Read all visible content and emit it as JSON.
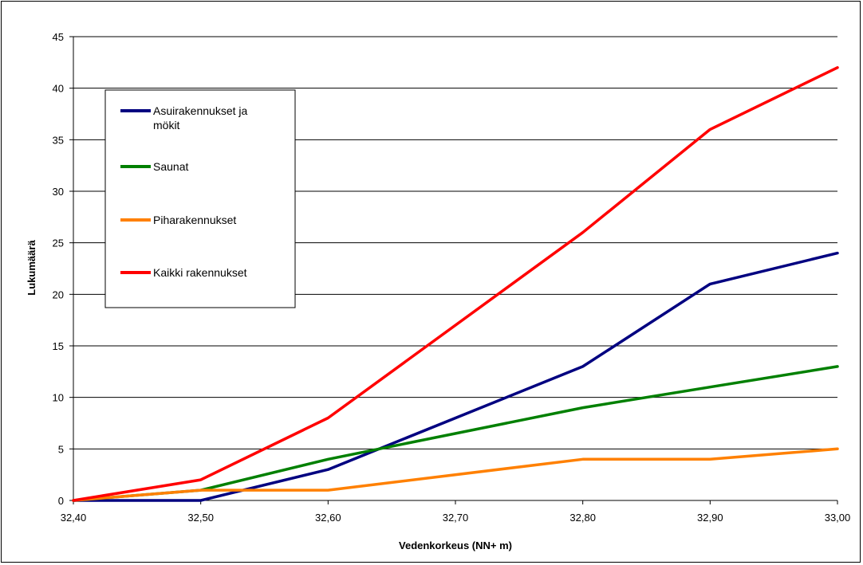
{
  "chart_data": {
    "type": "line",
    "xlabel": "Vedenkorkeus (NN+ m)",
    "ylabel": "Lukumäärä",
    "x": [
      "32,40",
      "32,50",
      "32,60",
      "32,70",
      "32,80",
      "32,90",
      "33,00"
    ],
    "x_values": [
      32.4,
      32.5,
      32.6,
      32.7,
      32.8,
      32.9,
      33.0
    ],
    "xlim": [
      32.4,
      33.0
    ],
    "ylim": [
      0,
      45
    ],
    "y_ticks": [
      0,
      5,
      10,
      15,
      20,
      25,
      30,
      35,
      40,
      45
    ],
    "grid": "horizontal",
    "legend_position": "upper-left",
    "series": [
      {
        "name": "Asuirakennukset ja mökit",
        "color": "#000080",
        "points": [
          [
            32.4,
            0
          ],
          [
            32.5,
            0
          ],
          [
            32.6,
            3
          ],
          [
            32.8,
            13
          ],
          [
            32.9,
            21
          ],
          [
            33.0,
            24
          ]
        ]
      },
      {
        "name": "Saunat",
        "color": "#008000",
        "points": [
          [
            32.4,
            0
          ],
          [
            32.5,
            1
          ],
          [
            32.6,
            4
          ],
          [
            32.8,
            9
          ],
          [
            32.9,
            11
          ],
          [
            33.0,
            13
          ]
        ]
      },
      {
        "name": "Piharakennukset",
        "color": "#FF8000",
        "points": [
          [
            32.4,
            0
          ],
          [
            32.5,
            1
          ],
          [
            32.6,
            1
          ],
          [
            32.8,
            4
          ],
          [
            32.9,
            4
          ],
          [
            33.0,
            5
          ]
        ]
      },
      {
        "name": "Kaikki rakennukset",
        "color": "#FF0000",
        "points": [
          [
            32.4,
            0
          ],
          [
            32.5,
            2
          ],
          [
            32.6,
            8
          ],
          [
            32.8,
            26
          ],
          [
            32.9,
            36
          ],
          [
            33.0,
            42
          ]
        ]
      }
    ]
  }
}
